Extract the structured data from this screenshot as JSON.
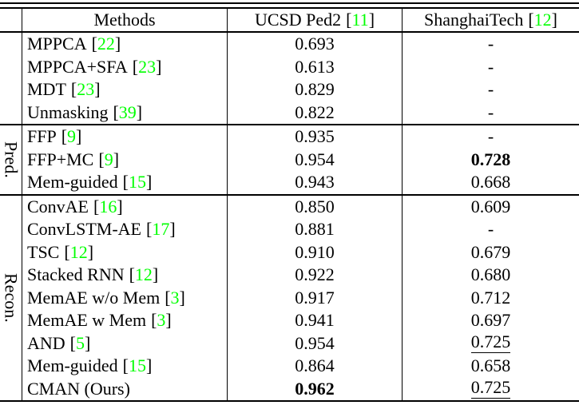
{
  "punct": {
    "open": "[",
    "close": "]"
  },
  "colors": {
    "citation_green": "#00ff00"
  },
  "header": {
    "methods": "Methods",
    "datasets": [
      {
        "name": "UCSD Ped2",
        "cite": "11"
      },
      {
        "name": "ShanghaiTech",
        "cite": "12"
      }
    ]
  },
  "groups": [
    {
      "label": "",
      "rows": [
        {
          "method": "MPPCA",
          "cite": "22",
          "cells": [
            {
              "v": "0.693",
              "s": "plain"
            },
            {
              "v": "-",
              "s": "plain"
            }
          ]
        },
        {
          "method": "MPPCA+SFA",
          "cite": "23",
          "cells": [
            {
              "v": "0.613",
              "s": "plain"
            },
            {
              "v": "-",
              "s": "plain"
            }
          ]
        },
        {
          "method": "MDT",
          "cite": "23",
          "cells": [
            {
              "v": "0.829",
              "s": "plain"
            },
            {
              "v": "-",
              "s": "plain"
            }
          ]
        },
        {
          "method": "Unmasking",
          "cite": "39",
          "cells": [
            {
              "v": "0.822",
              "s": "plain"
            },
            {
              "v": "-",
              "s": "plain"
            }
          ]
        }
      ]
    },
    {
      "label": "Pred.",
      "rows": [
        {
          "method": "FFP",
          "cite": "9",
          "cells": [
            {
              "v": "0.935",
              "s": "plain"
            },
            {
              "v": "-",
              "s": "plain"
            }
          ]
        },
        {
          "method": "FFP+MC",
          "cite": "9",
          "cells": [
            {
              "v": "0.954",
              "s": "plain"
            },
            {
              "v": "0.728",
              "s": "bold"
            }
          ]
        },
        {
          "method": "Mem-guided",
          "cite": "15",
          "cells": [
            {
              "v": "0.943",
              "s": "plain"
            },
            {
              "v": "0.668",
              "s": "plain"
            }
          ]
        }
      ]
    },
    {
      "label": "Recon.",
      "rows": [
        {
          "method": "ConvAE",
          "cite": "16",
          "cells": [
            {
              "v": "0.850",
              "s": "plain"
            },
            {
              "v": "0.609",
              "s": "plain"
            }
          ]
        },
        {
          "method": "ConvLSTM-AE",
          "cite": "17",
          "cells": [
            {
              "v": "0.881",
              "s": "plain"
            },
            {
              "v": "-",
              "s": "plain"
            }
          ]
        },
        {
          "method": "TSC",
          "cite": "12",
          "cells": [
            {
              "v": "0.910",
              "s": "plain"
            },
            {
              "v": "0.679",
              "s": "plain"
            }
          ]
        },
        {
          "method": "Stacked RNN",
          "cite": "12",
          "cells": [
            {
              "v": "0.922",
              "s": "plain"
            },
            {
              "v": "0.680",
              "s": "plain"
            }
          ]
        },
        {
          "method": "MemAE w/o Mem",
          "cite": "3",
          "cells": [
            {
              "v": "0.917",
              "s": "plain"
            },
            {
              "v": "0.712",
              "s": "plain"
            }
          ]
        },
        {
          "method": "MemAE w Mem",
          "cite": "3",
          "cells": [
            {
              "v": "0.941",
              "s": "plain"
            },
            {
              "v": "0.697",
              "s": "plain"
            }
          ]
        },
        {
          "method": "AND",
          "cite": "5",
          "cells": [
            {
              "v": "0.954",
              "s": "plain"
            },
            {
              "v": "0.725",
              "s": "underline"
            }
          ]
        },
        {
          "method": "Mem-guided",
          "cite": "15",
          "cells": [
            {
              "v": "0.864",
              "s": "plain"
            },
            {
              "v": "0.658",
              "s": "plain"
            }
          ]
        },
        {
          "method": "CMAN (Ours)",
          "cite": "",
          "cells": [
            {
              "v": "0.962",
              "s": "bold"
            },
            {
              "v": "0.725",
              "s": "underline"
            }
          ]
        }
      ]
    }
  ]
}
